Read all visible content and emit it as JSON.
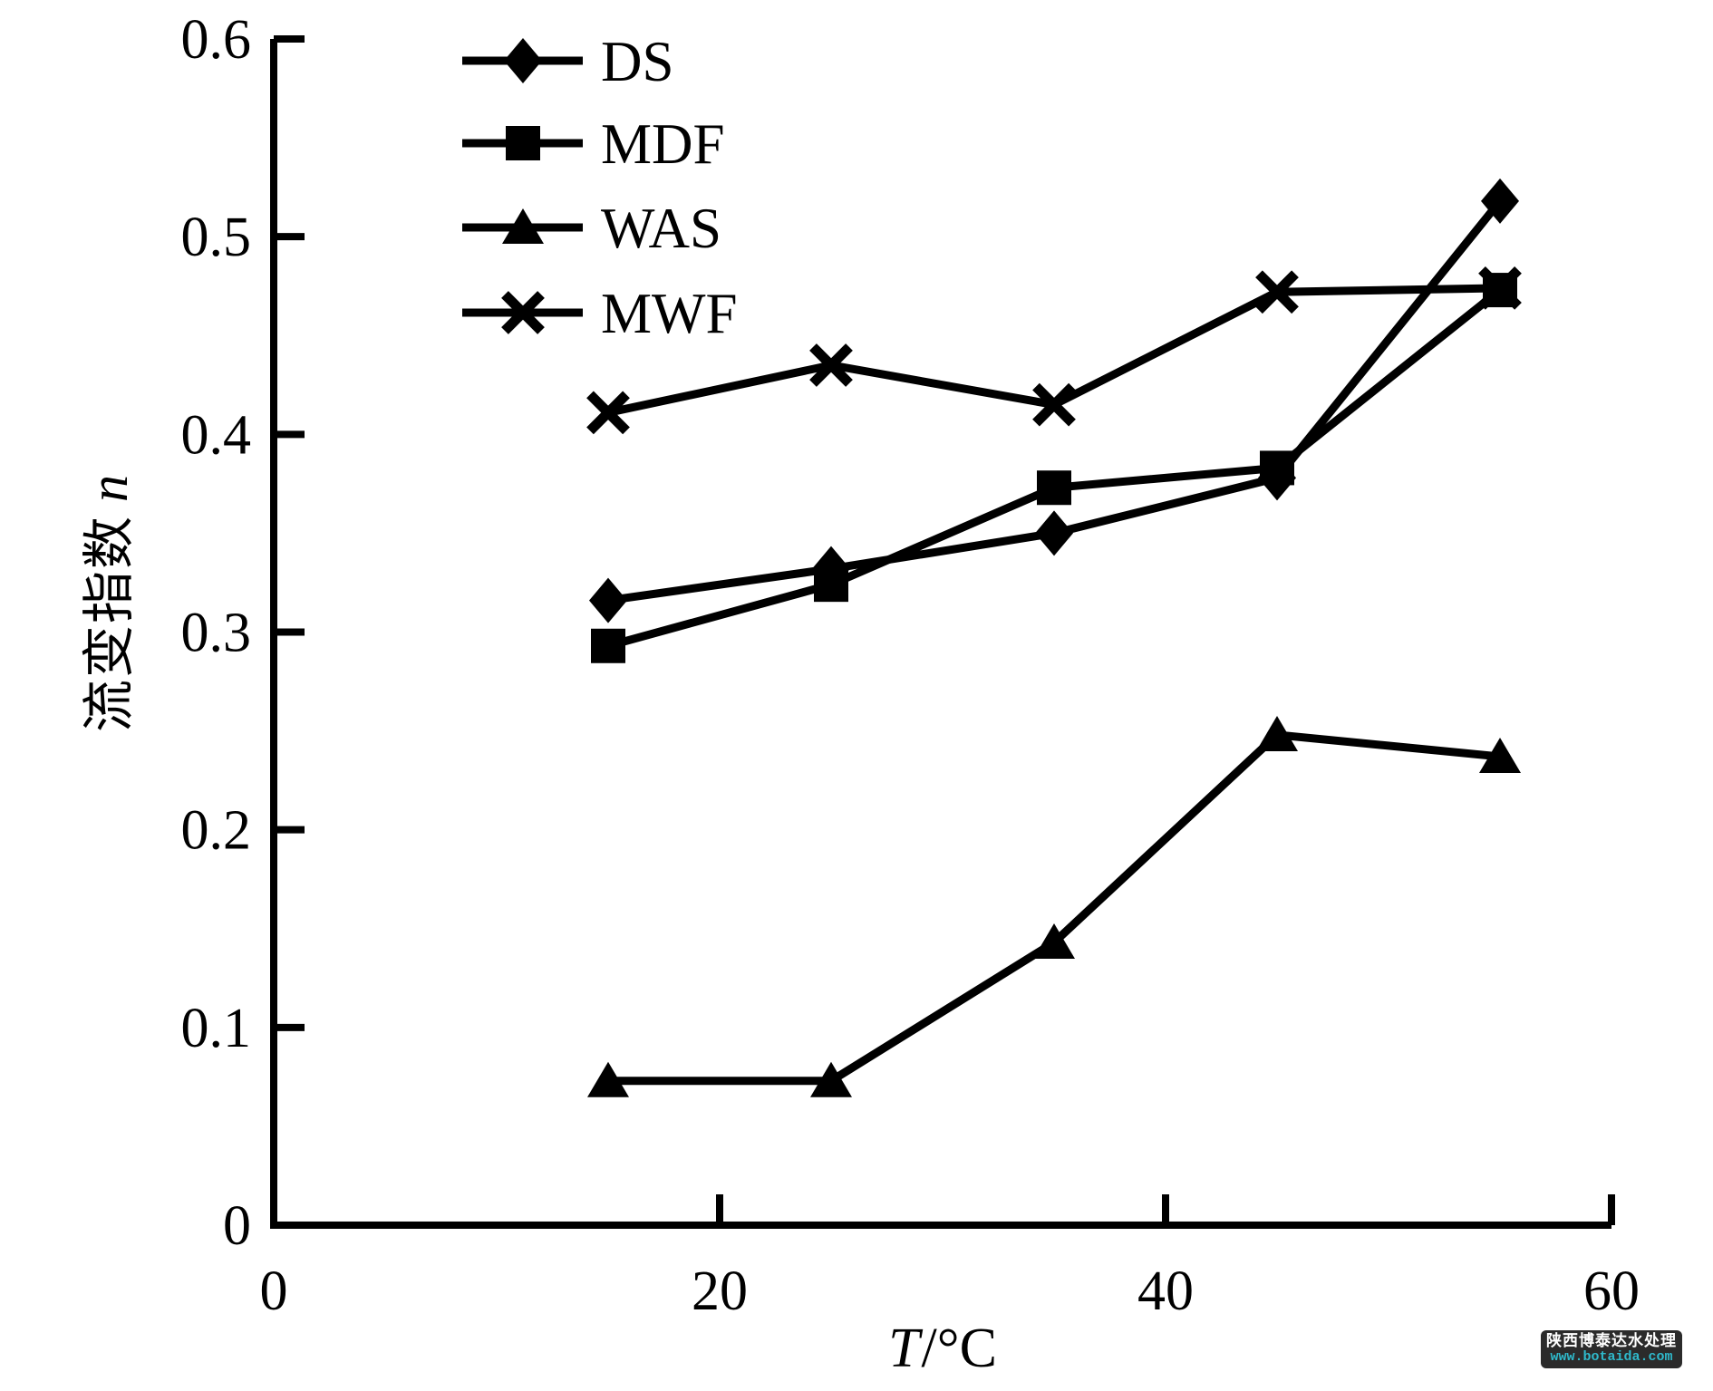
{
  "chart_data": {
    "type": "line",
    "title": "",
    "x": [
      15,
      25,
      35,
      45,
      55
    ],
    "series": [
      {
        "name": "DS",
        "marker": "diamond",
        "color": "#000000",
        "values": [
          0.316,
          0.332,
          0.35,
          0.378,
          0.518
        ]
      },
      {
        "name": "MDF",
        "marker": "square",
        "color": "#000000",
        "values": [
          0.293,
          0.324,
          0.373,
          0.383,
          0.473
        ]
      },
      {
        "name": "WAS",
        "marker": "triangle",
        "color": "#000000",
        "values": [
          0.073,
          0.073,
          0.143,
          0.248,
          0.237
        ]
      },
      {
        "name": "MWF",
        "marker": "x",
        "color": "#000000",
        "values": [
          0.411,
          0.435,
          0.415,
          0.472,
          0.474
        ]
      }
    ],
    "xlabel_italic": "T",
    "xlabel_rest": "/°C",
    "ylabel_cjk": "流变指数",
    "ylabel_italic": "n",
    "xlim": [
      0,
      60
    ],
    "ylim": [
      0,
      0.6
    ],
    "x_ticks": [
      0,
      20,
      40,
      60
    ],
    "y_ticks": [
      0,
      0.1,
      0.2,
      0.3,
      0.4,
      0.5,
      0.6
    ],
    "x_tick_labels": [
      "0",
      "20",
      "40",
      "60"
    ],
    "y_tick_labels": [
      "0",
      "0.1",
      "0.2",
      "0.3",
      "0.4",
      "0.5",
      "0.6"
    ],
    "grid": false,
    "legend_position": "top-left-inside",
    "axis_color": "#000000",
    "background": "#ffffff"
  },
  "watermark": {
    "line1": "陕西博泰达水处理",
    "line2": "www.botaida.com",
    "bg_color": "#2b2b2b",
    "line1_color": "#ffffff",
    "line2_color": "#2fb9cb"
  }
}
